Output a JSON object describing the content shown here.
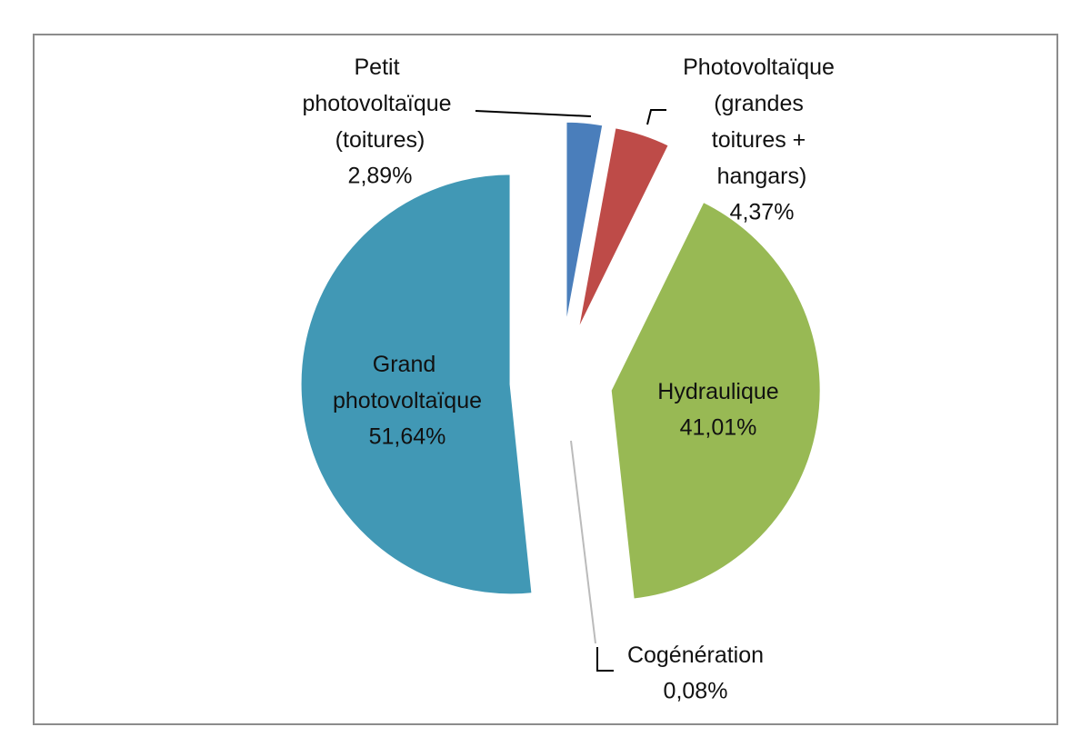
{
  "chart_data": {
    "type": "pie",
    "categories": [
      "Petit photovoltaïque (toitures)",
      "Photovoltaïque (grandes toitures + hangars)",
      "Hydraulique",
      "Cogénération",
      "Grand photovoltaïque"
    ],
    "values": [
      2.89,
      4.37,
      41.01,
      0.08,
      51.64
    ],
    "value_labels": [
      "2,89%",
      "4,37%",
      "41,01%",
      "0,08%",
      "51,64%"
    ],
    "colors": [
      "#4a7ebb",
      "#be4b48",
      "#98b954",
      "#7d60a0",
      "#4198b5"
    ]
  }
}
